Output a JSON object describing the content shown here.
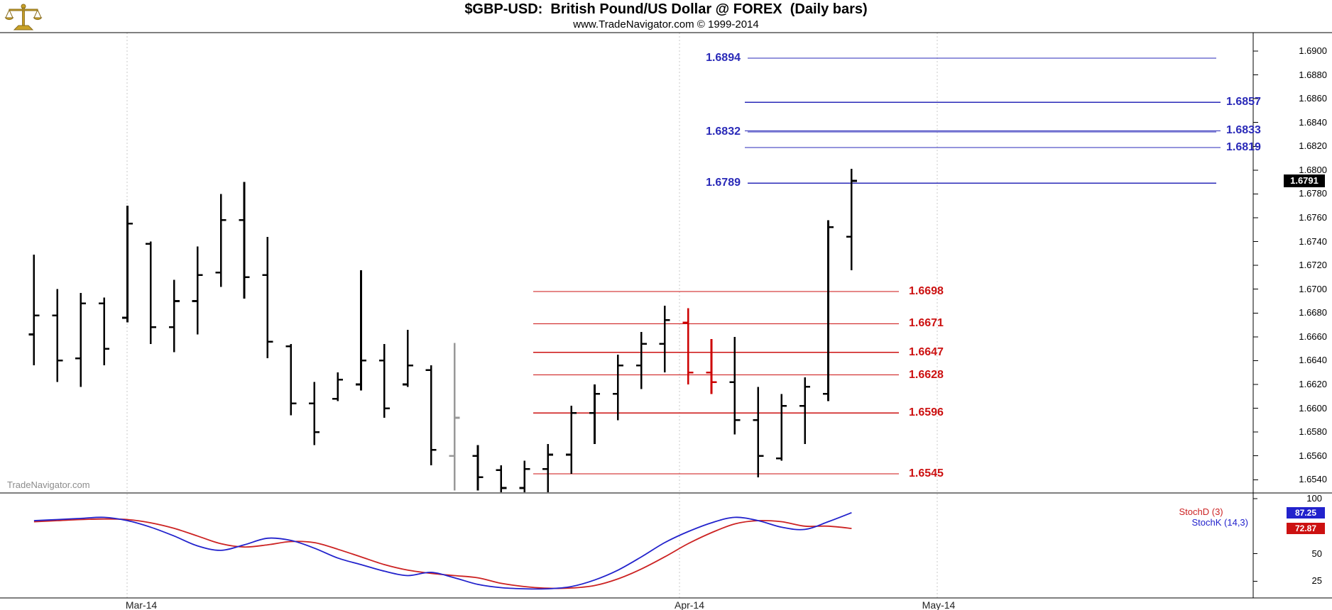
{
  "header": {
    "title": "$GBP-USD:  British Pound/US Dollar @ FOREX  (Daily bars)",
    "subtitle": "www.TradeNavigator.com © 1999-2014"
  },
  "watermark": "TradeNavigator.com",
  "colors": {
    "bar_black": "#000000",
    "bar_red": "#cc0000",
    "bar_gray": "#999999",
    "resistance_blue": "#2a2ab8",
    "support_red": "#cc1111",
    "stoch_k_blue": "#2222cc",
    "stoch_d_red": "#cc2222",
    "badge_black": "#000000",
    "logo_gold": "#c9a227"
  },
  "price_axis": {
    "ticks": [
      "1.6900",
      "1.6880",
      "1.6860",
      "1.6840",
      "1.6820",
      "1.6800",
      "1.6780",
      "1.6760",
      "1.6740",
      "1.6720",
      "1.6700",
      "1.6680",
      "1.6660",
      "1.6640",
      "1.6620",
      "1.6600",
      "1.6580",
      "1.6560",
      "1.6540"
    ],
    "last_price": "1.6791"
  },
  "x_axis": {
    "labels": [
      "Mar-14",
      "Apr-14",
      "May-14"
    ]
  },
  "stoch": {
    "d_label": "StochD (3)",
    "k_label": "StochK (14,3)",
    "ticks": [
      "100",
      "50",
      "25"
    ],
    "k_value": "87.25",
    "d_value": "72.87"
  },
  "levels": {
    "resistance": [
      {
        "value": "1.6894",
        "label_side": "left"
      },
      {
        "value": "1.6857",
        "label_side": "right"
      },
      {
        "value": "1.6833",
        "label_side": "right"
      },
      {
        "value": "1.6832",
        "label_side": "left"
      },
      {
        "value": "1.6819",
        "label_side": "right"
      },
      {
        "value": "1.6789",
        "label_side": "left"
      }
    ],
    "support": [
      "1.6698",
      "1.6671",
      "1.6647",
      "1.6628",
      "1.6596",
      "1.6545"
    ]
  },
  "chart_data": {
    "type": "ohlc-bar",
    "symbol": "$GBP-USD",
    "description": "British Pound/US Dollar @ FOREX",
    "interval": "Daily bars",
    "title": "$GBP-USD:  British Pound/US Dollar @ FOREX  (Daily bars)",
    "price_range_visible": [
      1.6529,
      1.6916
    ],
    "x_tick_labels": [
      "Mar-14",
      "Apr-14",
      "May-14"
    ],
    "resistance_levels": [
      1.6894,
      1.6857,
      1.6833,
      1.6832,
      1.6819,
      1.6789
    ],
    "support_levels": [
      1.6698,
      1.6671,
      1.6647,
      1.6628,
      1.6596,
      1.6545
    ],
    "last_price": 1.6791,
    "bars": [
      {
        "o": 1.6662,
        "h": 1.6729,
        "l": 1.6636,
        "c": 1.6678
      },
      {
        "o": 1.6678,
        "h": 1.67,
        "l": 1.6622,
        "c": 1.664
      },
      {
        "o": 1.6642,
        "h": 1.6697,
        "l": 1.6618,
        "c": 1.6688
      },
      {
        "o": 1.6688,
        "h": 1.6693,
        "l": 1.6636,
        "c": 1.665
      },
      {
        "o": 1.6676,
        "h": 1.677,
        "l": 1.6672,
        "c": 1.6755
      },
      {
        "o": 1.6738,
        "h": 1.674,
        "l": 1.6654,
        "c": 1.6668
      },
      {
        "o": 1.6668,
        "h": 1.6708,
        "l": 1.6647,
        "c": 1.669
      },
      {
        "o": 1.669,
        "h": 1.6736,
        "l": 1.6662,
        "c": 1.6712
      },
      {
        "o": 1.6714,
        "h": 1.678,
        "l": 1.6702,
        "c": 1.6758
      },
      {
        "o": 1.6758,
        "h": 1.679,
        "l": 1.6692,
        "c": 1.671
      },
      {
        "o": 1.6712,
        "h": 1.6744,
        "l": 1.6642,
        "c": 1.6656
      },
      {
        "o": 1.6652,
        "h": 1.6654,
        "l": 1.6594,
        "c": 1.6604
      },
      {
        "o": 1.6604,
        "h": 1.6622,
        "l": 1.6569,
        "c": 1.658
      },
      {
        "o": 1.6608,
        "h": 1.663,
        "l": 1.6606,
        "c": 1.6624
      },
      {
        "o": 1.662,
        "h": 1.6716,
        "l": 1.6615,
        "c": 1.664
      },
      {
        "o": 1.664,
        "h": 1.6654,
        "l": 1.6592,
        "c": 1.66
      },
      {
        "o": 1.662,
        "h": 1.6666,
        "l": 1.6618,
        "c": 1.6636
      },
      {
        "o": 1.6632,
        "h": 1.6636,
        "l": 1.6552,
        "c": 1.6565
      },
      {
        "o": 1.656,
        "h": 1.6655,
        "l": 1.6531,
        "c": 1.6592,
        "color": "gray"
      },
      {
        "o": 1.656,
        "h": 1.6569,
        "l": 1.6531,
        "c": 1.6542
      },
      {
        "o": 1.6548,
        "h": 1.6552,
        "l": 1.6528,
        "c": 1.6533
      },
      {
        "o": 1.6533,
        "h": 1.6556,
        "l": 1.6527,
        "c": 1.6549
      },
      {
        "o": 1.6549,
        "h": 1.657,
        "l": 1.6529,
        "c": 1.6561
      },
      {
        "o": 1.6561,
        "h": 1.6602,
        "l": 1.6545,
        "c": 1.6596
      },
      {
        "o": 1.6596,
        "h": 1.662,
        "l": 1.657,
        "c": 1.6612
      },
      {
        "o": 1.6612,
        "h": 1.6645,
        "l": 1.659,
        "c": 1.6636
      },
      {
        "o": 1.6636,
        "h": 1.6664,
        "l": 1.6616,
        "c": 1.6654
      },
      {
        "o": 1.6654,
        "h": 1.6686,
        "l": 1.663,
        "c": 1.6674
      },
      {
        "o": 1.6672,
        "h": 1.6684,
        "l": 1.662,
        "c": 1.663,
        "color": "red"
      },
      {
        "o": 1.663,
        "h": 1.6658,
        "l": 1.6612,
        "c": 1.6622,
        "color": "red"
      },
      {
        "o": 1.6622,
        "h": 1.666,
        "l": 1.6578,
        "c": 1.659
      },
      {
        "o": 1.659,
        "h": 1.6618,
        "l": 1.6542,
        "c": 1.656
      },
      {
        "o": 1.6558,
        "h": 1.6612,
        "l": 1.6556,
        "c": 1.6602
      },
      {
        "o": 1.6602,
        "h": 1.6626,
        "l": 1.657,
        "c": 1.6618
      },
      {
        "o": 1.6612,
        "h": 1.6758,
        "l": 1.6606,
        "c": 1.6752
      },
      {
        "o": 1.6744,
        "h": 1.6801,
        "l": 1.6716,
        "c": 1.6791
      }
    ],
    "indicator": {
      "type": "stochastic",
      "ylim": [
        0,
        100
      ],
      "ticks": [
        100,
        50,
        25
      ],
      "series": [
        {
          "name": "StochK (14,3)",
          "color": "#2222cc",
          "last": 87.25,
          "values": [
            80,
            81,
            82,
            83,
            80,
            74,
            66,
            57,
            53,
            58,
            64,
            62,
            55,
            46,
            40,
            34,
            30,
            33,
            28,
            22,
            19,
            18,
            18,
            20,
            26,
            35,
            47,
            60,
            70,
            78,
            83,
            80,
            74,
            72,
            79,
            87.25
          ]
        },
        {
          "name": "StochD (3)",
          "color": "#cc2222",
          "last": 72.87,
          "values": [
            79,
            80,
            81,
            81.5,
            81,
            78,
            73,
            66,
            59,
            56,
            58,
            61,
            60,
            54,
            47,
            40,
            35,
            32,
            30,
            28,
            23,
            20,
            18.5,
            18.7,
            21,
            27,
            36,
            47,
            59,
            69,
            77,
            80,
            79,
            75,
            75,
            72.87
          ]
        }
      ]
    }
  }
}
